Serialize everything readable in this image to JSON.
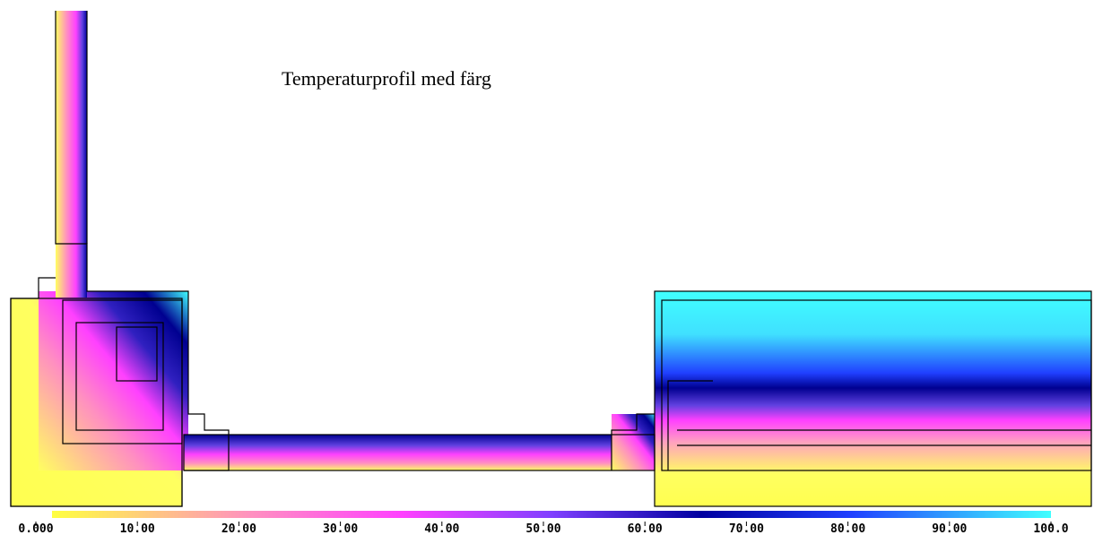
{
  "title": "Temperaturprofil med färg",
  "scale": {
    "lim": [
      0,
      100
    ],
    "ticks": [
      {
        "value": 0,
        "label": "0.000"
      },
      {
        "value": 10,
        "label": "10.00"
      },
      {
        "value": 20,
        "label": "20.00"
      },
      {
        "value": 30,
        "label": "30.00"
      },
      {
        "value": 40,
        "label": "40.00"
      },
      {
        "value": 50,
        "label": "50.00"
      },
      {
        "value": 60,
        "label": "60.00"
      },
      {
        "value": 70,
        "label": "70.00"
      },
      {
        "value": 80,
        "label": "80.00"
      },
      {
        "value": 90,
        "label": "90.00"
      },
      {
        "value": 100,
        "label": "100.0"
      }
    ]
  }
}
